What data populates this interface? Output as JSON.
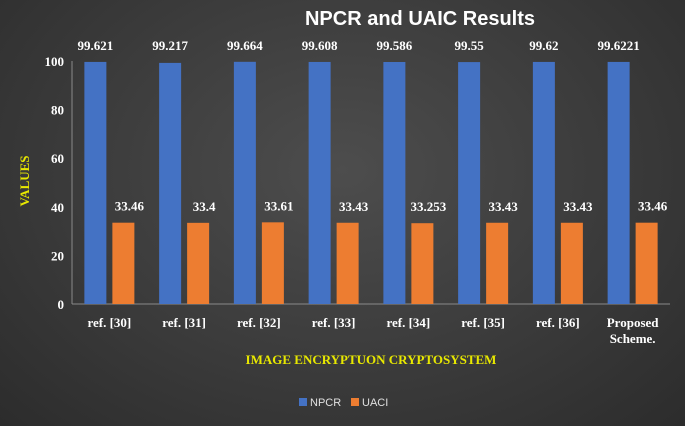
{
  "chart_data": {
    "type": "bar",
    "title": "NPCR and UAIC Results",
    "xlabel": "IMAGE ENCRYPTUON CRYPTOSYSTEM",
    "ylabel": "VALUES",
    "categories": [
      "ref. [30]",
      "ref. [31]",
      "ref. [32]",
      "ref. [33]",
      "ref. [34]",
      "ref. [35]",
      "ref. [36]",
      "Proposed Scheme."
    ],
    "series": [
      {
        "name": "NPCR",
        "color": "#4472c4",
        "values": [
          99.621,
          99.217,
          99.664,
          99.608,
          99.586,
          99.55,
          99.62,
          99.6221
        ],
        "labels": [
          "99.621",
          "99.217",
          "99.664",
          "99.608",
          "99.586",
          "99.55",
          "99.62",
          "99.6221"
        ]
      },
      {
        "name": "UACI",
        "color": "#ed7d31",
        "values": [
          33.46,
          33.4,
          33.61,
          33.43,
          33.253,
          33.43,
          33.43,
          33.46
        ],
        "labels": [
          "33.46",
          "33.4",
          "33.61",
          "33.43",
          "33.253",
          "33.43",
          "33.43",
          "33.46"
        ]
      }
    ],
    "ylim": [
      0,
      100
    ],
    "yticks": [
      "0",
      "20",
      "40",
      "60",
      "80",
      "100"
    ],
    "grid": false,
    "legend": "bottom"
  }
}
